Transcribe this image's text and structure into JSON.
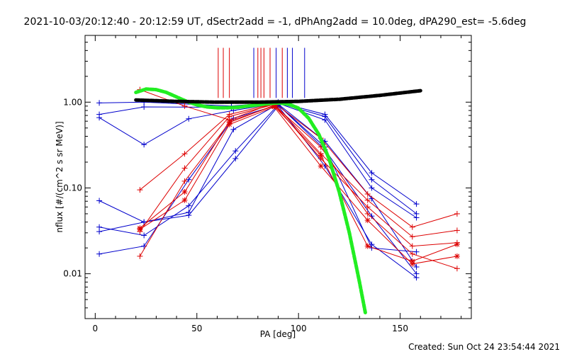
{
  "chart_data": {
    "type": "scatter",
    "title": "2021-10-03/20:12:40 - 20:12:59 UT, dSectr2add = -1, dPhAng2add = 10.0deg, dPA290_est= -5.6deg",
    "xlabel": "PA [deg]",
    "ylabel": "nflux [#/(cm^2 s sr MeV)]",
    "xlim": [
      -5,
      185
    ],
    "ylim": [
      0.003,
      6
    ],
    "yscale": "log",
    "grid": false,
    "x_ticks": [
      {
        "value": 0,
        "label": "0"
      },
      {
        "value": 50,
        "label": "50"
      },
      {
        "value": 100,
        "label": "100"
      },
      {
        "value": 150,
        "label": "150"
      }
    ],
    "y_ticks": [
      {
        "value": 0.01,
        "label": "0.01"
      },
      {
        "value": 0.1,
        "label": "0.10"
      },
      {
        "value": 1,
        "label": "1.00"
      }
    ],
    "footer": "Created: Sun Oct 24 23:54:44 2021",
    "colors": {
      "blue": "#0000cc",
      "red": "#dd0000",
      "green": "#22ee22",
      "black": "#000000"
    },
    "pa_markers": {
      "y_top": 4.3,
      "y_bottom": 1.12,
      "red": [
        60.5,
        63,
        66,
        80,
        81.5,
        83,
        86,
        92
      ],
      "blue": [
        78,
        89,
        94.5,
        97,
        103
      ]
    },
    "series": [
      {
        "color": "blue",
        "marker": "plus",
        "points": [
          [
            2,
            0.98
          ],
          [
            24,
            1.0
          ],
          [
            67,
            0.9
          ],
          [
            90,
            1.0
          ],
          [
            113,
            0.72
          ],
          [
            136,
            0.15
          ],
          [
            158,
            0.065
          ]
        ]
      },
      {
        "color": "blue",
        "marker": "plus",
        "points": [
          [
            2,
            0.72
          ],
          [
            24,
            0.88
          ],
          [
            67,
            0.87
          ],
          [
            90,
            0.98
          ],
          [
            113,
            0.68
          ],
          [
            136,
            0.125
          ],
          [
            158,
            0.05
          ]
        ]
      },
      {
        "color": "blue",
        "marker": "plus",
        "points": [
          [
            2,
            0.66
          ],
          [
            24,
            0.32
          ],
          [
            46,
            0.64
          ],
          [
            68,
            0.8
          ],
          [
            90,
            0.97
          ],
          [
            113,
            0.62
          ],
          [
            136,
            0.1
          ],
          [
            158,
            0.045
          ]
        ]
      },
      {
        "color": "blue",
        "marker": "plus",
        "points": [
          [
            2,
            0.071
          ],
          [
            24,
            0.04
          ],
          [
            46,
            0.052
          ],
          [
            68,
            0.48
          ],
          [
            90,
            0.95
          ],
          [
            113,
            0.35
          ],
          [
            136,
            0.075
          ],
          [
            158,
            0.012
          ]
        ]
      },
      {
        "color": "blue",
        "marker": "plus",
        "points": [
          [
            2,
            0.035
          ],
          [
            24,
            0.028
          ],
          [
            46,
            0.062
          ],
          [
            69,
            0.27
          ],
          [
            90,
            0.93
          ],
          [
            113,
            0.28
          ],
          [
            136,
            0.047
          ],
          [
            158,
            0.01
          ]
        ]
      },
      {
        "color": "blue",
        "marker": "plus",
        "points": [
          [
            2,
            0.031
          ],
          [
            24,
            0.04
          ],
          [
            46,
            0.048
          ],
          [
            69,
            0.22
          ],
          [
            90,
            0.9
          ],
          [
            113,
            0.18
          ],
          [
            136,
            0.022
          ],
          [
            158,
            0.009
          ]
        ]
      },
      {
        "color": "blue",
        "marker": "plus",
        "points": [
          [
            2,
            0.017
          ],
          [
            24,
            0.021
          ],
          [
            46,
            0.125
          ],
          [
            68,
            0.65
          ],
          [
            90,
            0.93
          ],
          [
            113,
            0.3
          ],
          [
            136,
            0.02
          ],
          [
            158,
            0.018
          ]
        ]
      },
      {
        "color": "red",
        "marker": "plus",
        "points": [
          [
            22,
            1.4
          ],
          [
            44,
            0.9
          ],
          [
            66,
            0.62
          ],
          [
            88,
            0.98
          ],
          [
            111,
            0.38
          ],
          [
            134,
            0.085
          ],
          [
            156,
            0.035
          ],
          [
            178,
            0.05
          ]
        ]
      },
      {
        "color": "red",
        "marker": "plus",
        "points": [
          [
            22,
            0.095
          ],
          [
            44,
            0.25
          ],
          [
            66,
            0.72
          ],
          [
            88,
            0.96
          ],
          [
            111,
            0.25
          ],
          [
            134,
            0.072
          ],
          [
            156,
            0.027
          ],
          [
            178,
            0.032
          ]
        ]
      },
      {
        "color": "red",
        "marker": "plus",
        "points": [
          [
            22,
            0.031
          ],
          [
            44,
            0.17
          ],
          [
            66,
            0.68
          ],
          [
            88,
            0.94
          ],
          [
            111,
            0.22
          ],
          [
            134,
            0.06
          ],
          [
            156,
            0.021
          ],
          [
            178,
            0.023
          ]
        ]
      },
      {
        "color": "red",
        "marker": "plus",
        "points": [
          [
            22,
            0.016
          ],
          [
            44,
            0.12
          ],
          [
            66,
            0.58
          ],
          [
            88,
            0.92
          ],
          [
            111,
            0.3
          ],
          [
            134,
            0.05
          ],
          [
            156,
            0.017
          ],
          [
            178,
            0.0115
          ]
        ]
      },
      {
        "color": "red",
        "marker": "star",
        "points": [
          [
            22,
            0.033
          ],
          [
            44,
            0.072
          ],
          [
            66,
            0.55
          ],
          [
            88,
            0.88
          ],
          [
            111,
            0.18
          ],
          [
            134,
            0.042
          ],
          [
            156,
            0.013
          ],
          [
            178,
            0.016
          ]
        ]
      },
      {
        "color": "red",
        "marker": "star",
        "points": [
          [
            22,
            0.034
          ],
          [
            44,
            0.09
          ],
          [
            66,
            0.6
          ],
          [
            88,
            0.9
          ],
          [
            111,
            0.24
          ],
          [
            134,
            0.021
          ],
          [
            156,
            0.014
          ],
          [
            178,
            0.022
          ]
        ]
      }
    ],
    "fits": [
      {
        "color": "green",
        "points": [
          [
            20,
            1.3
          ],
          [
            25,
            1.42
          ],
          [
            30,
            1.4
          ],
          [
            35,
            1.3
          ],
          [
            40,
            1.15
          ],
          [
            45,
            1.02
          ],
          [
            50,
            0.93
          ],
          [
            55,
            0.88
          ],
          [
            60,
            0.86
          ],
          [
            65,
            0.86
          ],
          [
            70,
            0.87
          ],
          [
            75,
            0.9
          ],
          [
            80,
            0.93
          ],
          [
            85,
            0.96
          ],
          [
            90,
            0.98
          ],
          [
            95,
            0.95
          ],
          [
            100,
            0.85
          ],
          [
            105,
            0.65
          ],
          [
            110,
            0.42
          ],
          [
            115,
            0.22
          ],
          [
            120,
            0.09
          ],
          [
            125,
            0.03
          ],
          [
            130,
            0.008
          ],
          [
            133,
            0.0034
          ]
        ]
      },
      {
        "color": "black",
        "points": [
          [
            20,
            1.06
          ],
          [
            40,
            1.02
          ],
          [
            60,
            1.0
          ],
          [
            80,
            1.0
          ],
          [
            100,
            1.02
          ],
          [
            120,
            1.08
          ],
          [
            140,
            1.2
          ],
          [
            160,
            1.36
          ]
        ]
      }
    ]
  }
}
